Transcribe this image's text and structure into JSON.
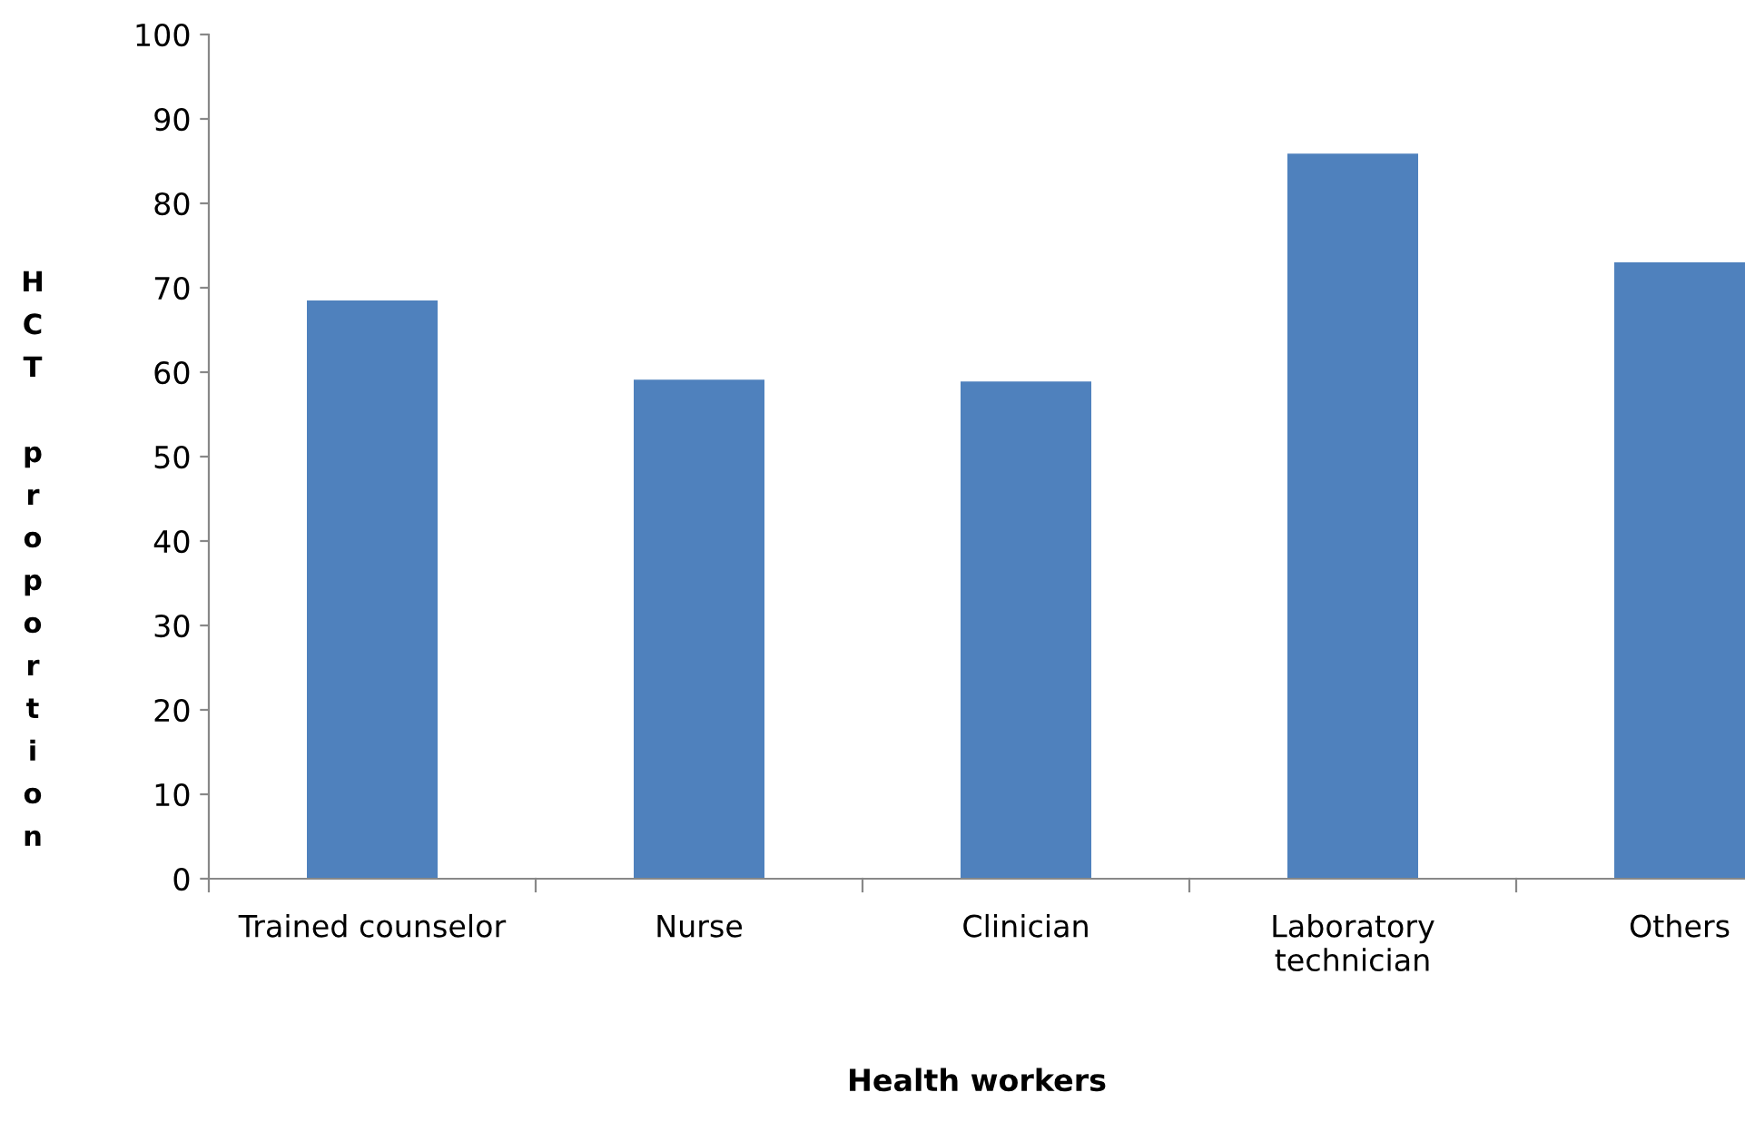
{
  "chart_data": {
    "type": "bar",
    "xlabel": "Health workers",
    "ylabel": "HCT proportion",
    "categories": [
      "Trained counselor",
      "Nurse",
      "Clinician",
      "Laboratory\ntechnician",
      "Others"
    ],
    "values": [
      68.5,
      59.1,
      58.9,
      85.9,
      73.0
    ],
    "color": "#4f81bd",
    "ylim": [
      0,
      100
    ],
    "yticks": [
      0,
      10,
      20,
      30,
      40,
      50,
      60,
      70,
      80,
      90,
      100
    ],
    "grid": false
  }
}
